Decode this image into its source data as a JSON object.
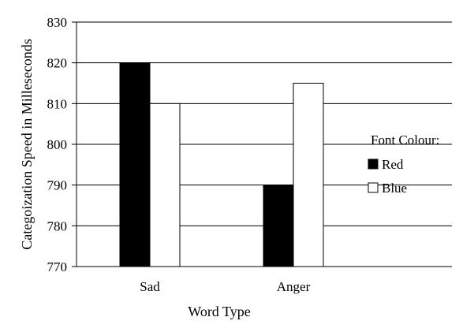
{
  "chart_data": {
    "type": "bar",
    "categories": [
      "Sad",
      "Anger"
    ],
    "series": [
      {
        "name": "Red",
        "values": [
          820,
          790
        ],
        "color": "#000000"
      },
      {
        "name": "Blue",
        "values": [
          810,
          815
        ],
        "color": "#ffffff"
      }
    ],
    "xlabel": "Word Type",
    "ylabel": "Categoization Speed in Milleseconds",
    "ylim": [
      770,
      830
    ],
    "yticks": [
      770,
      780,
      790,
      800,
      810,
      820,
      830
    ],
    "grid": true,
    "legend_title": "Font Colour:",
    "legend_position": "right"
  }
}
